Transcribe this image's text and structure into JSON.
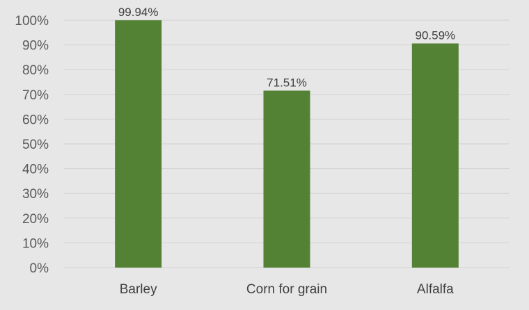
{
  "chart_data": {
    "type": "bar",
    "categories": [
      "Barley",
      "Corn for grain",
      "Alfalfa"
    ],
    "values": [
      99.94,
      71.51,
      90.59
    ],
    "data_labels": [
      "99.94%",
      "71.51%",
      "90.59%"
    ],
    "title": "",
    "xlabel": "",
    "ylabel": "",
    "ylim": [
      0,
      100
    ],
    "yticks": [
      0,
      10,
      20,
      30,
      40,
      50,
      60,
      70,
      80,
      90,
      100
    ],
    "ytick_labels": [
      "0%",
      "10%",
      "20%",
      "30%",
      "40%",
      "50%",
      "60%",
      "70%",
      "80%",
      "90%",
      "100%"
    ],
    "grid": true,
    "legend": "none",
    "colors": {
      "bar": "#548235",
      "background": "#e7e7e7",
      "grid": "#d2d2d2"
    }
  }
}
